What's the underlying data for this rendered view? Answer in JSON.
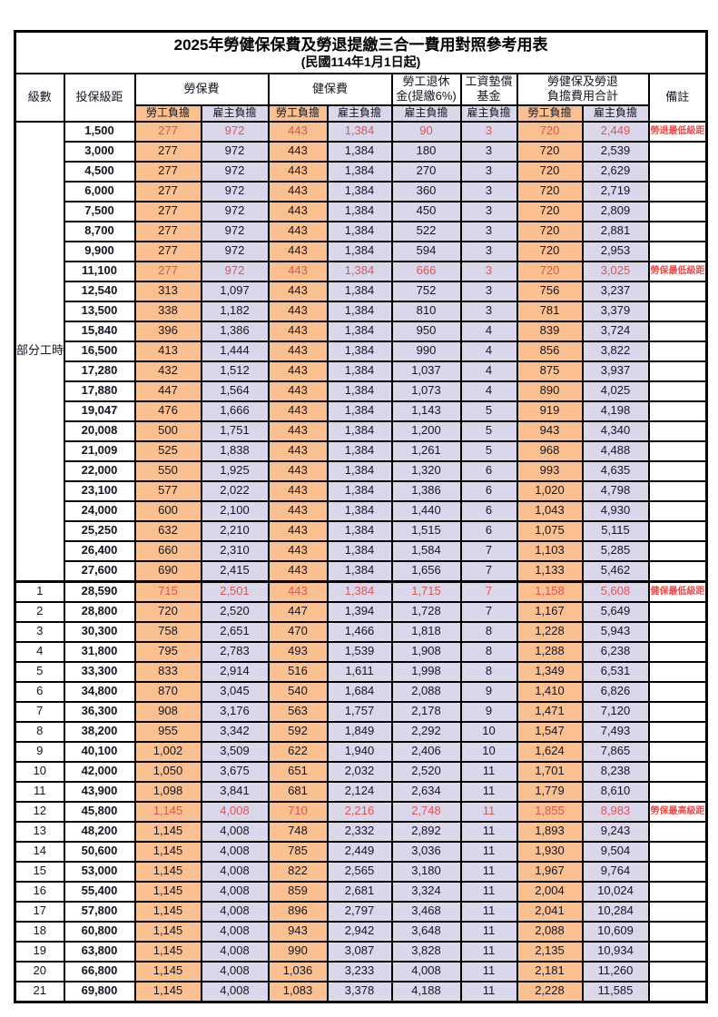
{
  "page": {
    "title_line1": "2025年勞健保保費及勞退提繳三合一費用對照參考用表",
    "title_line2": "(民國114年1月1日起)"
  },
  "table": {
    "header": {
      "level": "級數",
      "bracket": "投保級距",
      "labor_insurance": "勞保費",
      "health_insurance": "健保費",
      "pension_line1": "勞工退休",
      "pension_line2": "金(提繳6%)",
      "wage_fund_line1": "工資墊償",
      "wage_fund_line2": "基金",
      "total_line1": "勞健保及勞退",
      "total_line2": "負擔費用合計",
      "remark": "備註",
      "employee_share": "勞工負擔",
      "employer_share": "雇主負擔"
    },
    "part_time_label": "部分工時",
    "colors": {
      "employee_bg": "#FAC090",
      "employer_bg": "#DBD7EB",
      "highlight_text": "#E05355",
      "remark_text": "#F04B4B"
    },
    "rows": [
      {
        "level": "",
        "bracket": "1,500",
        "values": [
          "277",
          "972",
          "443",
          "1,384",
          "90",
          "3",
          "720",
          "2,449"
        ],
        "remark": "勞退最低級距",
        "highlight": true
      },
      {
        "level": "",
        "bracket": "3,000",
        "values": [
          "277",
          "972",
          "443",
          "1,384",
          "180",
          "3",
          "720",
          "2,539"
        ],
        "remark": "",
        "highlight": false
      },
      {
        "level": "",
        "bracket": "4,500",
        "values": [
          "277",
          "972",
          "443",
          "1,384",
          "270",
          "3",
          "720",
          "2,629"
        ],
        "remark": "",
        "highlight": false
      },
      {
        "level": "",
        "bracket": "6,000",
        "values": [
          "277",
          "972",
          "443",
          "1,384",
          "360",
          "3",
          "720",
          "2,719"
        ],
        "remark": "",
        "highlight": false
      },
      {
        "level": "",
        "bracket": "7,500",
        "values": [
          "277",
          "972",
          "443",
          "1,384",
          "450",
          "3",
          "720",
          "2,809"
        ],
        "remark": "",
        "highlight": false
      },
      {
        "level": "",
        "bracket": "8,700",
        "values": [
          "277",
          "972",
          "443",
          "1,384",
          "522",
          "3",
          "720",
          "2,881"
        ],
        "remark": "",
        "highlight": false
      },
      {
        "level": "",
        "bracket": "9,900",
        "values": [
          "277",
          "972",
          "443",
          "1,384",
          "594",
          "3",
          "720",
          "2,953"
        ],
        "remark": "",
        "highlight": false
      },
      {
        "level": "",
        "bracket": "11,100",
        "values": [
          "277",
          "972",
          "443",
          "1,384",
          "666",
          "3",
          "720",
          "3,025"
        ],
        "remark": "勞保最低級距",
        "highlight": true
      },
      {
        "level": "",
        "bracket": "12,540",
        "values": [
          "313",
          "1,097",
          "443",
          "1,384",
          "752",
          "3",
          "756",
          "3,237"
        ],
        "remark": "",
        "highlight": false
      },
      {
        "level": "",
        "bracket": "13,500",
        "values": [
          "338",
          "1,182",
          "443",
          "1,384",
          "810",
          "3",
          "781",
          "3,379"
        ],
        "remark": "",
        "highlight": false
      },
      {
        "level": "",
        "bracket": "15,840",
        "values": [
          "396",
          "1,386",
          "443",
          "1,384",
          "950",
          "4",
          "839",
          "3,724"
        ],
        "remark": "",
        "highlight": false
      },
      {
        "level": "",
        "bracket": "16,500",
        "values": [
          "413",
          "1,444",
          "443",
          "1,384",
          "990",
          "4",
          "856",
          "3,822"
        ],
        "remark": "",
        "highlight": false
      },
      {
        "level": "",
        "bracket": "17,280",
        "values": [
          "432",
          "1,512",
          "443",
          "1,384",
          "1,037",
          "4",
          "875",
          "3,937"
        ],
        "remark": "",
        "highlight": false
      },
      {
        "level": "",
        "bracket": "17,880",
        "values": [
          "447",
          "1,564",
          "443",
          "1,384",
          "1,073",
          "4",
          "890",
          "4,025"
        ],
        "remark": "",
        "highlight": false
      },
      {
        "level": "",
        "bracket": "19,047",
        "values": [
          "476",
          "1,666",
          "443",
          "1,384",
          "1,143",
          "5",
          "919",
          "4,198"
        ],
        "remark": "",
        "highlight": false
      },
      {
        "level": "",
        "bracket": "20,008",
        "values": [
          "500",
          "1,751",
          "443",
          "1,384",
          "1,200",
          "5",
          "943",
          "4,340"
        ],
        "remark": "",
        "highlight": false
      },
      {
        "level": "",
        "bracket": "21,009",
        "values": [
          "525",
          "1,838",
          "443",
          "1,384",
          "1,261",
          "5",
          "968",
          "4,488"
        ],
        "remark": "",
        "highlight": false
      },
      {
        "level": "",
        "bracket": "22,000",
        "values": [
          "550",
          "1,925",
          "443",
          "1,384",
          "1,320",
          "6",
          "993",
          "4,635"
        ],
        "remark": "",
        "highlight": false
      },
      {
        "level": "",
        "bracket": "23,100",
        "values": [
          "577",
          "2,022",
          "443",
          "1,384",
          "1,386",
          "6",
          "1,020",
          "4,798"
        ],
        "remark": "",
        "highlight": false
      },
      {
        "level": "",
        "bracket": "24,000",
        "values": [
          "600",
          "2,100",
          "443",
          "1,384",
          "1,440",
          "6",
          "1,043",
          "4,930"
        ],
        "remark": "",
        "highlight": false
      },
      {
        "level": "",
        "bracket": "25,250",
        "values": [
          "632",
          "2,210",
          "443",
          "1,384",
          "1,515",
          "6",
          "1,075",
          "5,115"
        ],
        "remark": "",
        "highlight": false
      },
      {
        "level": "",
        "bracket": "26,400",
        "values": [
          "660",
          "2,310",
          "443",
          "1,384",
          "1,584",
          "7",
          "1,103",
          "5,285"
        ],
        "remark": "",
        "highlight": false
      },
      {
        "level": "",
        "bracket": "27,600",
        "values": [
          "690",
          "2,415",
          "443",
          "1,384",
          "1,656",
          "7",
          "1,133",
          "5,462"
        ],
        "remark": "",
        "highlight": false
      },
      {
        "level": "1",
        "bracket": "28,590",
        "values": [
          "715",
          "2,501",
          "443",
          "1,384",
          "1,715",
          "7",
          "1,158",
          "5,608"
        ],
        "remark": "健保最低級距",
        "highlight": true
      },
      {
        "level": "2",
        "bracket": "28,800",
        "values": [
          "720",
          "2,520",
          "447",
          "1,394",
          "1,728",
          "7",
          "1,167",
          "5,649"
        ],
        "remark": "",
        "highlight": false
      },
      {
        "level": "3",
        "bracket": "30,300",
        "values": [
          "758",
          "2,651",
          "470",
          "1,466",
          "1,818",
          "8",
          "1,228",
          "5,943"
        ],
        "remark": "",
        "highlight": false
      },
      {
        "level": "4",
        "bracket": "31,800",
        "values": [
          "795",
          "2,783",
          "493",
          "1,539",
          "1,908",
          "8",
          "1,288",
          "6,238"
        ],
        "remark": "",
        "highlight": false
      },
      {
        "level": "5",
        "bracket": "33,300",
        "values": [
          "833",
          "2,914",
          "516",
          "1,611",
          "1,998",
          "8",
          "1,349",
          "6,531"
        ],
        "remark": "",
        "highlight": false
      },
      {
        "level": "6",
        "bracket": "34,800",
        "values": [
          "870",
          "3,045",
          "540",
          "1,684",
          "2,088",
          "9",
          "1,410",
          "6,826"
        ],
        "remark": "",
        "highlight": false
      },
      {
        "level": "7",
        "bracket": "36,300",
        "values": [
          "908",
          "3,176",
          "563",
          "1,757",
          "2,178",
          "9",
          "1,471",
          "7,120"
        ],
        "remark": "",
        "highlight": false
      },
      {
        "level": "8",
        "bracket": "38,200",
        "values": [
          "955",
          "3,342",
          "592",
          "1,849",
          "2,292",
          "10",
          "1,547",
          "7,493"
        ],
        "remark": "",
        "highlight": false
      },
      {
        "level": "9",
        "bracket": "40,100",
        "values": [
          "1,002",
          "3,509",
          "622",
          "1,940",
          "2,406",
          "10",
          "1,624",
          "7,865"
        ],
        "remark": "",
        "highlight": false
      },
      {
        "level": "10",
        "bracket": "42,000",
        "values": [
          "1,050",
          "3,675",
          "651",
          "2,032",
          "2,520",
          "11",
          "1,701",
          "8,238"
        ],
        "remark": "",
        "highlight": false
      },
      {
        "level": "11",
        "bracket": "43,900",
        "values": [
          "1,098",
          "3,841",
          "681",
          "2,124",
          "2,634",
          "11",
          "1,779",
          "8,610"
        ],
        "remark": "",
        "highlight": false
      },
      {
        "level": "12",
        "bracket": "45,800",
        "values": [
          "1,145",
          "4,008",
          "710",
          "2,216",
          "2,748",
          "11",
          "1,855",
          "8,983"
        ],
        "remark": "勞保最高級距",
        "highlight": true
      },
      {
        "level": "13",
        "bracket": "48,200",
        "values": [
          "1,145",
          "4,008",
          "748",
          "2,332",
          "2,892",
          "11",
          "1,893",
          "9,243"
        ],
        "remark": "",
        "highlight": false
      },
      {
        "level": "14",
        "bracket": "50,600",
        "values": [
          "1,145",
          "4,008",
          "785",
          "2,449",
          "3,036",
          "11",
          "1,930",
          "9,504"
        ],
        "remark": "",
        "highlight": false
      },
      {
        "level": "15",
        "bracket": "53,000",
        "values": [
          "1,145",
          "4,008",
          "822",
          "2,565",
          "3,180",
          "11",
          "1,967",
          "9,764"
        ],
        "remark": "",
        "highlight": false
      },
      {
        "level": "16",
        "bracket": "55,400",
        "values": [
          "1,145",
          "4,008",
          "859",
          "2,681",
          "3,324",
          "11",
          "2,004",
          "10,024"
        ],
        "remark": "",
        "highlight": false
      },
      {
        "level": "17",
        "bracket": "57,800",
        "values": [
          "1,145",
          "4,008",
          "896",
          "2,797",
          "3,468",
          "11",
          "2,041",
          "10,284"
        ],
        "remark": "",
        "highlight": false
      },
      {
        "level": "18",
        "bracket": "60,800",
        "values": [
          "1,145",
          "4,008",
          "943",
          "2,942",
          "3,648",
          "11",
          "2,088",
          "10,609"
        ],
        "remark": "",
        "highlight": false
      },
      {
        "level": "19",
        "bracket": "63,800",
        "values": [
          "1,145",
          "4,008",
          "990",
          "3,087",
          "3,828",
          "11",
          "2,135",
          "10,934"
        ],
        "remark": "",
        "highlight": false
      },
      {
        "level": "20",
        "bracket": "66,800",
        "values": [
          "1,145",
          "4,008",
          "1,036",
          "3,233",
          "4,008",
          "11",
          "2,181",
          "11,260"
        ],
        "remark": "",
        "highlight": false
      },
      {
        "level": "21",
        "bracket": "69,800",
        "values": [
          "1,145",
          "4,008",
          "1,083",
          "3,378",
          "4,188",
          "11",
          "2,228",
          "11,585"
        ],
        "remark": "",
        "highlight": false
      }
    ]
  }
}
